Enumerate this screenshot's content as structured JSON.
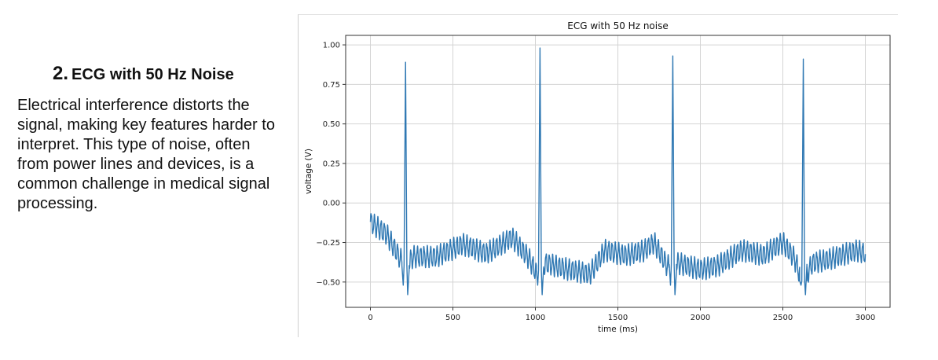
{
  "panel": {
    "number": "2.",
    "heading": "ECG with 50 Hz Noise",
    "body": "Electrical interference distorts the signal, making key features harder to interpret. This type of noise, often from power lines and devices, is a common challenge in medical signal processing."
  },
  "chart_data": {
    "type": "line",
    "title": "ECG with 50 Hz noise",
    "xlabel": "time (ms)",
    "ylabel": "voltage (V)",
    "xlim": [
      -150,
      3150
    ],
    "ylim": [
      -0.66,
      1.06
    ],
    "x_ticks": [
      0,
      500,
      1000,
      1500,
      2000,
      2500,
      3000
    ],
    "y_ticks": [
      1.0,
      0.75,
      0.5,
      0.25,
      0.0,
      -0.25,
      -0.5
    ],
    "x_tick_labels": [
      "0",
      "500",
      "1000",
      "1500",
      "2000",
      "2500",
      "3000"
    ],
    "y_tick_labels": [
      "1.00",
      "0.75",
      "0.50",
      "0.25",
      "0.00",
      "−0.25",
      "−0.50"
    ],
    "grid": true,
    "line_color": "#2f78b3",
    "x_range": [
      0,
      3000
    ],
    "noise_frequency_hz": 50,
    "noise_amplitude": 0.06,
    "baseline": [
      [
        0,
        -0.12
      ],
      [
        100,
        -0.2
      ],
      [
        180,
        -0.35
      ],
      [
        210,
        -0.4
      ],
      [
        260,
        -0.34
      ],
      [
        400,
        -0.34
      ],
      [
        560,
        -0.26
      ],
      [
        700,
        -0.32
      ],
      [
        860,
        -0.22
      ],
      [
        960,
        -0.35
      ],
      [
        1010,
        -0.45
      ],
      [
        1060,
        -0.38
      ],
      [
        1200,
        -0.42
      ],
      [
        1330,
        -0.45
      ],
      [
        1420,
        -0.3
      ],
      [
        1550,
        -0.33
      ],
      [
        1660,
        -0.3
      ],
      [
        1720,
        -0.25
      ],
      [
        1800,
        -0.4
      ],
      [
        1860,
        -0.38
      ],
      [
        2000,
        -0.42
      ],
      [
        2100,
        -0.4
      ],
      [
        2250,
        -0.3
      ],
      [
        2380,
        -0.33
      ],
      [
        2500,
        -0.25
      ],
      [
        2570,
        -0.35
      ],
      [
        2620,
        -0.5
      ],
      [
        2680,
        -0.38
      ],
      [
        2800,
        -0.35
      ],
      [
        2950,
        -0.3
      ],
      [
        3000,
        -0.32
      ]
    ],
    "r_peaks": [
      {
        "x": 213,
        "y": 0.89
      },
      {
        "x": 1028,
        "y": 0.98
      },
      {
        "x": 1833,
        "y": 0.93
      },
      {
        "x": 2624,
        "y": 0.91
      }
    ],
    "q_trough_depth": -0.52,
    "s_trough_depth": -0.58
  }
}
